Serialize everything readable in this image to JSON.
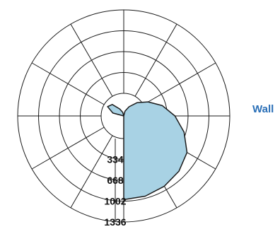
{
  "chart_data": {
    "type": "polar-area",
    "direction_label": "Wall",
    "radial_ticks": [
      334,
      668,
      1002,
      1336
    ],
    "r_max": 1336,
    "angular_divisions": 12,
    "grid": true,
    "series": [
      {
        "angle_deg": [
          0,
          15,
          30,
          45,
          60,
          75,
          90,
          105,
          120,
          135,
          150,
          165,
          180,
          195,
          210,
          225,
          240,
          255,
          270
        ],
        "values": [
          1340,
          1330,
          1300,
          1250,
          1170,
          1000,
          820,
          640,
          450,
          300,
          170,
          80,
          0,
          60,
          130,
          260,
          300,
          180,
          0
        ]
      }
    ]
  },
  "colors": {
    "fill": "#a8d2e4",
    "outline": "#1a1a1a",
    "grid": "#1a1a1a",
    "direction_label": "#2a6fb7"
  }
}
